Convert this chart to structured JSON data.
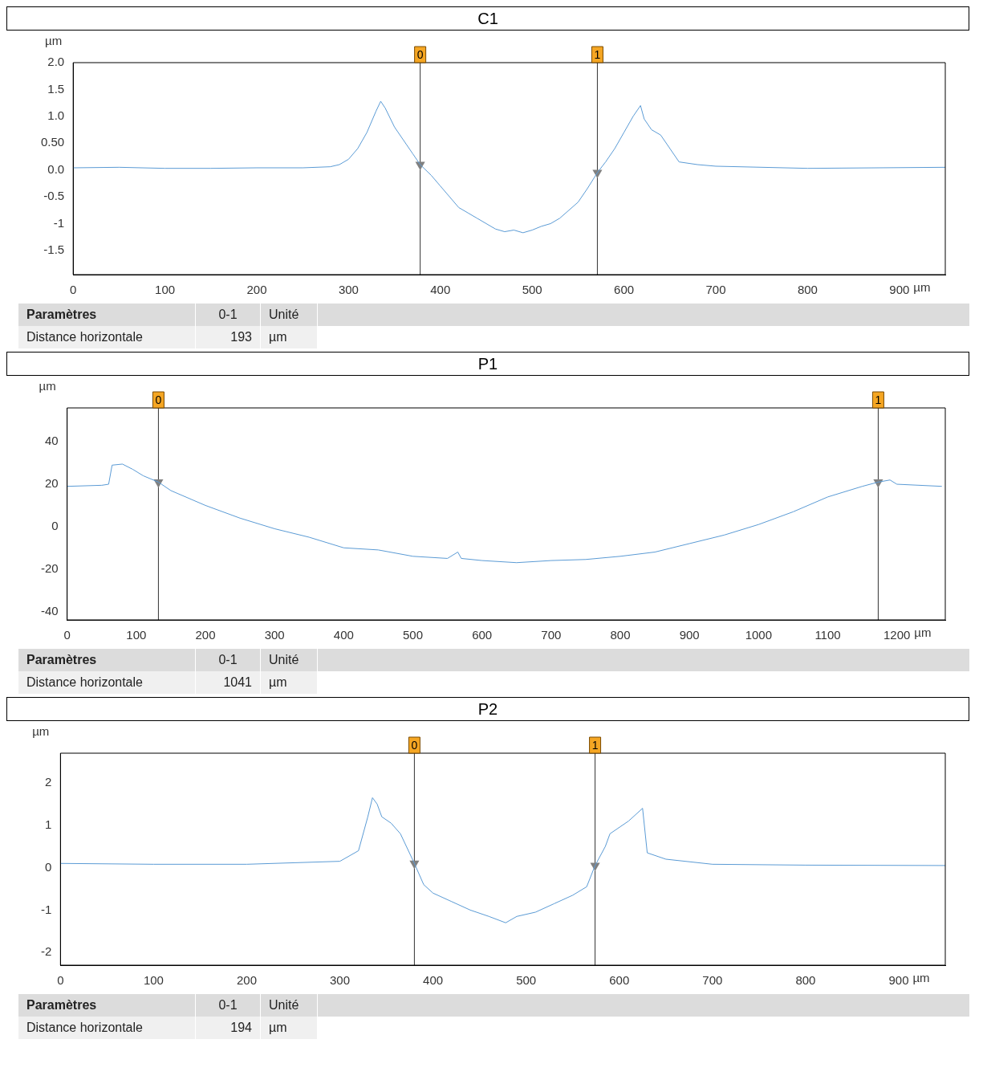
{
  "chart_data": [
    {
      "type": "line",
      "title": "C1",
      "ylabel": "µm",
      "xlabel": "µm",
      "x": [
        0,
        50,
        100,
        150,
        200,
        250,
        280,
        290,
        300,
        310,
        320,
        330,
        335,
        340,
        350,
        360,
        370,
        378,
        390,
        400,
        410,
        420,
        430,
        440,
        450,
        460,
        470,
        480,
        490,
        500,
        510,
        520,
        530,
        540,
        550,
        560,
        571,
        580,
        590,
        600,
        610,
        618,
        622,
        630,
        640,
        650,
        660,
        680,
        700,
        800,
        950
      ],
      "series": [
        {
          "color": "#5b9bd5",
          "values": [
            0.04,
            0.05,
            0.03,
            0.03,
            0.04,
            0.04,
            0.06,
            0.1,
            0.2,
            0.4,
            0.7,
            1.1,
            1.28,
            1.15,
            0.8,
            0.55,
            0.3,
            0.1,
            -0.1,
            -0.3,
            -0.5,
            -0.7,
            -0.8,
            -0.9,
            -1.0,
            -1.1,
            -1.15,
            -1.12,
            -1.17,
            -1.12,
            -1.05,
            -1.0,
            -0.9,
            -0.75,
            -0.6,
            -0.35,
            -0.05,
            0.15,
            0.4,
            0.7,
            1.0,
            1.2,
            0.95,
            0.75,
            0.65,
            0.4,
            0.15,
            0.1,
            0.07,
            0.03,
            0.05
          ]
        },
        {
          "type": "scatter",
          "marker": "triangle",
          "color": "#808080",
          "x": [
            378,
            571
          ],
          "values": [
            0.1,
            -0.05
          ]
        }
      ],
      "xlim": [
        0,
        950
      ],
      "xticks": [
        0,
        100,
        200,
        300,
        400,
        500,
        600,
        700,
        800,
        900
      ],
      "ylim": [
        -1.95,
        2.0
      ],
      "yticks": [
        {
          "value": 2,
          "label": "2.0"
        },
        1.5,
        {
          "value": 1,
          "label": "1.0"
        },
        {
          "value": 0.5,
          "label": "0.50"
        },
        {
          "value": 0,
          "label": "0.0"
        },
        -0.5,
        -1,
        -1.5
      ],
      "ref_lines": [
        {
          "axis": "x",
          "value": 378
        },
        {
          "axis": "x",
          "value": 571
        }
      ],
      "annotations": [
        "Paramètres",
        "0-1",
        "Unité",
        "Distance horizontale",
        "193",
        "µm",
        {
          "text": "0",
          "x": 378,
          "y": 2.0
        },
        {
          "text": "1",
          "x": 571,
          "y": 2.0
        }
      ]
    },
    {
      "type": "line",
      "title": "P1",
      "ylabel": "µm",
      "xlabel": "µm",
      "x": [
        0,
        50,
        60,
        65,
        80,
        95,
        110,
        132,
        150,
        200,
        250,
        300,
        350,
        400,
        450,
        500,
        550,
        565,
        570,
        600,
        650,
        700,
        750,
        800,
        850,
        900,
        950,
        1000,
        1050,
        1100,
        1150,
        1173,
        1190,
        1200,
        1265
      ],
      "series": [
        {
          "color": "#5b9bd5",
          "values": [
            19,
            19.5,
            20,
            29,
            29.5,
            27,
            24,
            21,
            17,
            10,
            4,
            -1,
            -5,
            -10,
            -11,
            -14,
            -15,
            -12,
            -15,
            -16,
            -17,
            -16,
            -15.5,
            -14,
            -12,
            -8,
            -4,
            1,
            7,
            14,
            19,
            21,
            22,
            20,
            19
          ]
        },
        {
          "type": "scatter",
          "marker": "triangle",
          "color": "#808080",
          "x": [
            132,
            1173
          ],
          "values": [
            21,
            21
          ]
        }
      ],
      "xlim": [
        0,
        1270
      ],
      "xticks": [
        0,
        100,
        200,
        300,
        400,
        500,
        600,
        700,
        800,
        900,
        1000,
        1100,
        1200
      ],
      "ylim": [
        -44,
        56
      ],
      "yticks": [
        40,
        20,
        0,
        -20,
        -40
      ],
      "ref_lines": [
        {
          "axis": "x",
          "value": 132
        },
        {
          "axis": "x",
          "value": 1173
        }
      ],
      "annotations": [
        "Paramètres",
        "0-1",
        "Unité",
        "Distance horizontale",
        "1041",
        "µm",
        {
          "text": "0",
          "x": 132,
          "y": 56
        },
        {
          "text": "1",
          "x": 1173,
          "y": 56
        }
      ]
    },
    {
      "type": "line",
      "title": "P2",
      "ylabel": "µm",
      "xlabel": "µm",
      "x": [
        0,
        100,
        200,
        300,
        320,
        330,
        335,
        340,
        345,
        355,
        365,
        380,
        390,
        400,
        420,
        440,
        460,
        478,
        490,
        510,
        530,
        550,
        565,
        574,
        585,
        590,
        610,
        625,
        630,
        650,
        700,
        800,
        950
      ],
      "series": [
        {
          "color": "#5b9bd5",
          "values": [
            0.1,
            0.08,
            0.08,
            0.15,
            0.4,
            1.2,
            1.65,
            1.5,
            1.2,
            1.05,
            0.8,
            0.1,
            -0.4,
            -0.6,
            -0.8,
            -1.0,
            -1.15,
            -1.3,
            -1.15,
            -1.05,
            -0.85,
            -0.65,
            -0.45,
            0.05,
            0.5,
            0.8,
            1.1,
            1.4,
            0.35,
            0.2,
            0.08,
            0.06,
            0.05
          ]
        },
        {
          "type": "scatter",
          "marker": "triangle",
          "color": "#808080",
          "x": [
            380,
            574
          ],
          "values": [
            0.1,
            0.05
          ]
        }
      ],
      "xlim": [
        0,
        950
      ],
      "xticks": [
        0,
        100,
        200,
        300,
        400,
        500,
        600,
        700,
        800,
        900
      ],
      "ylim": [
        -2.3,
        2.7
      ],
      "yticks": [
        2,
        1,
        0,
        -1,
        -2
      ],
      "ref_lines": [
        {
          "axis": "x",
          "value": 380
        },
        {
          "axis": "x",
          "value": 574
        }
      ],
      "annotations": [
        "Paramètres",
        "0-1",
        "Unité",
        "Distance horizontale",
        "194",
        "µm",
        {
          "text": "0",
          "x": 380,
          "y": 2.7
        },
        {
          "text": "1",
          "x": 574,
          "y": 2.7
        }
      ]
    }
  ]
}
